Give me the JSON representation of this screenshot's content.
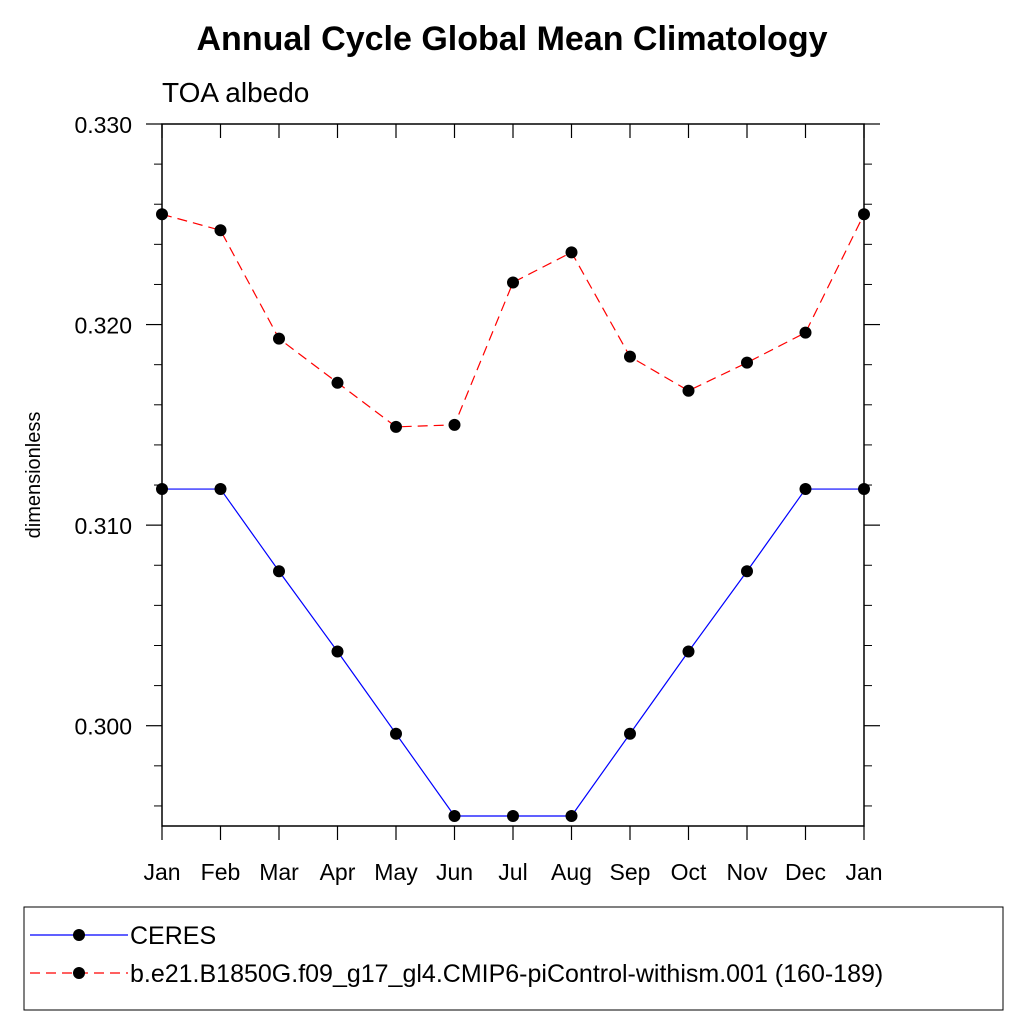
{
  "chart_data": {
    "type": "line",
    "title": "Annual Cycle Global Mean Climatology",
    "subtitle": "TOA albedo",
    "xlabel": "",
    "ylabel": "dimensionless",
    "categories": [
      "Jan",
      "Feb",
      "Mar",
      "Apr",
      "May",
      "Jun",
      "Jul",
      "Aug",
      "Sep",
      "Oct",
      "Nov",
      "Dec",
      "Jan"
    ],
    "ylim": [
      0.295,
      0.33
    ],
    "yticks": [
      0.3,
      0.31,
      0.32,
      0.33
    ],
    "ytick_labels": [
      "0.300",
      "0.310",
      "0.320",
      "0.330"
    ],
    "grid": false,
    "legend_position": "bottom",
    "series": [
      {
        "name": "CERES",
        "color": "#0000ff",
        "style": "solid",
        "values": [
          0.3118,
          0.3118,
          0.3077,
          0.3037,
          0.2996,
          0.2955,
          0.2955,
          0.2955,
          0.2996,
          0.3037,
          0.3077,
          0.3118,
          0.3118
        ]
      },
      {
        "name": "b.e21.B1850G.f09_g17_gl4.CMIP6-piControl-withism.001 (160-189)",
        "color": "#ff0000",
        "style": "dashed",
        "values": [
          0.3255,
          0.3247,
          0.3193,
          0.3171,
          0.3149,
          0.315,
          0.3221,
          0.3236,
          0.3184,
          0.3167,
          0.3181,
          0.3196,
          0.3255
        ]
      }
    ]
  }
}
